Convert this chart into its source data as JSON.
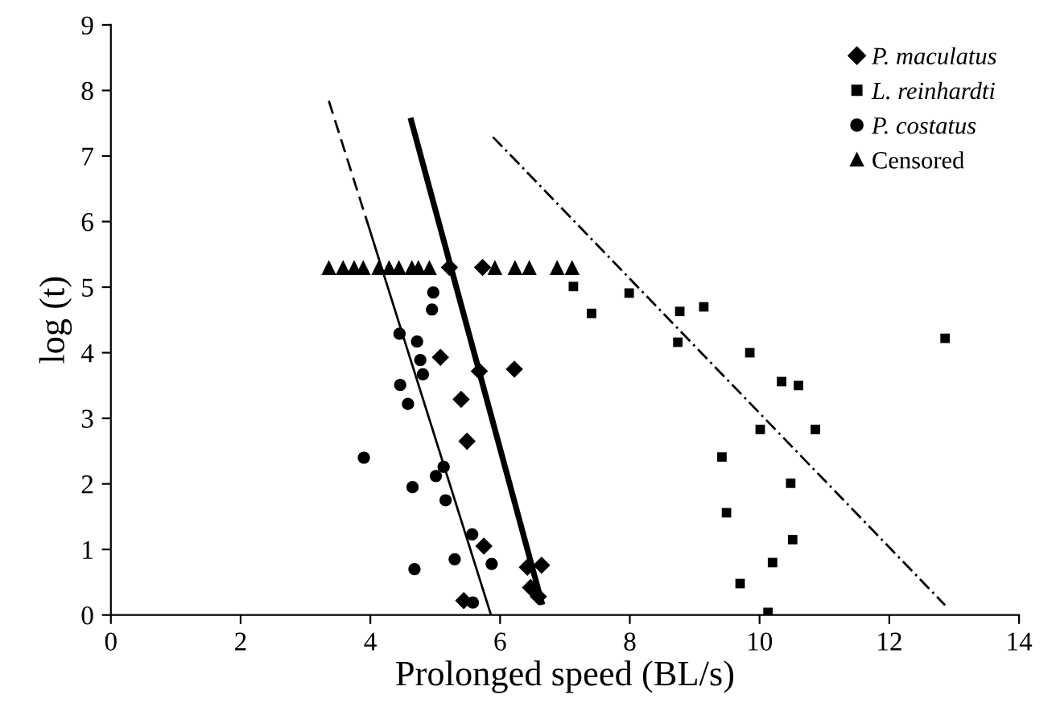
{
  "chart_data": {
    "type": "scatter",
    "xlabel": "Prolonged speed (BL/s)",
    "ylabel": "log (t)",
    "xlim": [
      0,
      14
    ],
    "ylim": [
      0,
      9
    ],
    "xticks": [
      0,
      2,
      4,
      6,
      8,
      10,
      12,
      14
    ],
    "yticks": [
      0,
      1,
      2,
      3,
      4,
      5,
      6,
      7,
      8,
      9
    ],
    "grid": false,
    "legend": "top right",
    "series": [
      {
        "name": "P. maculatus",
        "color": "#000000",
        "marker": "diamond",
        "x": [
          5.22,
          5.73,
          5.08,
          5.68,
          6.22,
          5.4,
          5.49,
          5.75,
          6.42,
          6.64,
          6.47,
          6.59,
          5.44
        ],
        "values": [
          5.3,
          5.3,
          3.93,
          3.72,
          3.75,
          3.29,
          2.65,
          1.05,
          0.73,
          0.76,
          0.42,
          0.28,
          0.22
        ]
      },
      {
        "name": "L. reinhardti",
        "color": "#000000",
        "marker": "square",
        "x": [
          7.13,
          7.41,
          7.99,
          8.77,
          9.14,
          8.74,
          9.85,
          12.86,
          10.34,
          10.6,
          10.01,
          10.86,
          9.42,
          10.48,
          9.49,
          10.51,
          10.2,
          9.7,
          10.13
        ],
        "values": [
          5.01,
          4.6,
          4.91,
          4.63,
          4.7,
          4.16,
          4.0,
          4.22,
          3.56,
          3.5,
          2.83,
          2.83,
          2.41,
          2.01,
          1.56,
          1.15,
          0.8,
          0.48,
          0.04
        ]
      },
      {
        "name": "P. costatus",
        "color": "#000000",
        "marker": "circle",
        "x": [
          4.97,
          4.95,
          4.45,
          4.72,
          4.77,
          4.81,
          4.46,
          4.58,
          3.9,
          5.13,
          5.01,
          4.65,
          5.16,
          5.57,
          5.3,
          5.87,
          4.68,
          5.58
        ],
        "values": [
          4.92,
          4.66,
          4.29,
          4.17,
          3.89,
          3.67,
          3.51,
          3.22,
          2.4,
          2.26,
          2.12,
          1.95,
          1.75,
          1.23,
          0.85,
          0.78,
          0.7,
          0.19
        ]
      },
      {
        "name": "Censored",
        "color": "#000000",
        "marker": "triangle",
        "x": [
          3.36,
          3.58,
          3.75,
          3.89,
          4.13,
          4.29,
          4.44,
          4.64,
          4.74,
          4.91,
          5.92,
          6.23,
          6.45,
          6.88,
          7.11
        ],
        "values": [
          5.3,
          5.3,
          5.3,
          5.3,
          5.3,
          5.3,
          5.3,
          5.3,
          5.3,
          5.3,
          5.3,
          5.3,
          5.3,
          5.3,
          5.3
        ]
      },
      {
        "type": "line",
        "color": "#000000",
        "line_style": "dashed",
        "x": [
          3.36,
          3.95
        ],
        "values": [
          7.84,
          6.0
        ]
      },
      {
        "type": "line",
        "color": "#000000",
        "line_style": "solid",
        "x": [
          3.95,
          5.86
        ],
        "values": [
          6.0,
          0
        ]
      },
      {
        "type": "line",
        "color": "#000000",
        "line_style": "solid",
        "x": [
          4.63,
          6.64
        ],
        "values": [
          7.54,
          0.2
        ]
      },
      {
        "type": "line",
        "color": "#000000",
        "line_style": "dashdot",
        "x": [
          5.89,
          12.86
        ],
        "values": [
          7.29,
          0.15
        ]
      }
    ]
  }
}
